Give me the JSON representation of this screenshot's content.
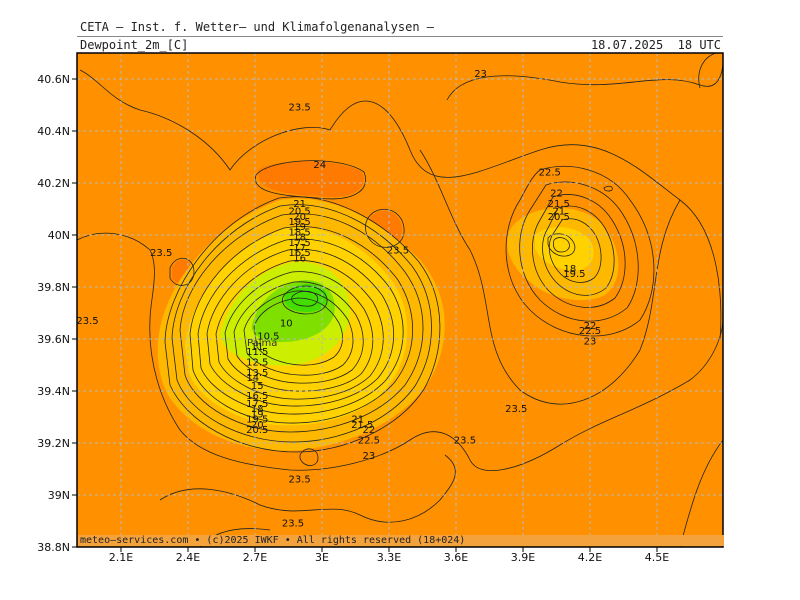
{
  "header": {
    "title": "CETA — Inst. f. Wetter— und Klimafolgenanalysen —",
    "field": "Dewpoint_2m_[C]",
    "valid_time": "18.07.2025  18 UTC"
  },
  "footer": {
    "credit": "meteo—services.com • (c)2025 IWKF • All rights reserved (18+024)"
  },
  "map": {
    "place_label": "Palma",
    "colors": {
      "background": "#ff9100",
      "warm": "#ff7a00",
      "pale": "#ffb800",
      "yellow": "#ffd200",
      "yellowgreen": "#ccee00",
      "green": "#7fe000",
      "bright_green": "#44dd00",
      "grid": "#b9b9b9",
      "contour": "#222222"
    },
    "lon_ticks": [
      "2.1E",
      "2.4E",
      "2.7E",
      "3E",
      "3.3E",
      "3.6E",
      "3.9E",
      "4.2E",
      "4.5E"
    ],
    "lat_ticks": [
      "40.6N",
      "40.4N",
      "40.2N",
      "40N",
      "39.8N",
      "39.6N",
      "39.4N",
      "39.2N",
      "39N",
      "38.8N"
    ],
    "lon_values": [
      2.1,
      2.4,
      2.7,
      3.0,
      3.3,
      3.6,
      3.9,
      4.2,
      4.5
    ],
    "lat_values": [
      40.6,
      40.4,
      40.2,
      40.0,
      39.8,
      39.6,
      39.4,
      39.2,
      39.0,
      38.8
    ],
    "contour_labels": [
      {
        "text": "23",
        "lon": 3.71,
        "lat": 40.62
      },
      {
        "text": "23.5",
        "lon": 2.9,
        "lat": 40.49
      },
      {
        "text": "24",
        "lon": 2.99,
        "lat": 40.27
      },
      {
        "text": "22.5",
        "lon": 4.02,
        "lat": 40.24
      },
      {
        "text": "22",
        "lon": 4.05,
        "lat": 40.16
      },
      {
        "text": "21.5",
        "lon": 4.06,
        "lat": 40.12
      },
      {
        "text": "21",
        "lon": 4.06,
        "lat": 40.09
      },
      {
        "text": "20.5",
        "lon": 4.06,
        "lat": 40.07
      },
      {
        "text": "21",
        "lon": 2.9,
        "lat": 40.12
      },
      {
        "text": "20.5",
        "lon": 2.9,
        "lat": 40.09
      },
      {
        "text": "20",
        "lon": 2.9,
        "lat": 40.07
      },
      {
        "text": "19.5",
        "lon": 2.9,
        "lat": 40.05
      },
      {
        "text": "19",
        "lon": 2.9,
        "lat": 40.03
      },
      {
        "text": "18.5",
        "lon": 2.9,
        "lat": 40.01
      },
      {
        "text": "18",
        "lon": 2.9,
        "lat": 39.99
      },
      {
        "text": "17.5",
        "lon": 2.9,
        "lat": 39.97
      },
      {
        "text": "17",
        "lon": 2.9,
        "lat": 39.95
      },
      {
        "text": "16.5",
        "lon": 2.9,
        "lat": 39.93
      },
      {
        "text": "16",
        "lon": 2.9,
        "lat": 39.91
      },
      {
        "text": "23.5",
        "lon": 2.28,
        "lat": 39.93
      },
      {
        "text": "23.5",
        "lon": 3.34,
        "lat": 39.94
      },
      {
        "text": "18",
        "lon": 4.11,
        "lat": 39.87
      },
      {
        "text": "19.5",
        "lon": 4.13,
        "lat": 39.85
      },
      {
        "text": "23.5",
        "lon": 1.95,
        "lat": 39.67
      },
      {
        "text": "10",
        "lon": 2.84,
        "lat": 39.66
      },
      {
        "text": "10.5",
        "lon": 2.76,
        "lat": 39.61
      },
      {
        "text": "11",
        "lon": 2.71,
        "lat": 39.57
      },
      {
        "text": "11.5",
        "lon": 2.71,
        "lat": 39.55
      },
      {
        "text": "12.5",
        "lon": 2.71,
        "lat": 39.51
      },
      {
        "text": "13.5",
        "lon": 2.71,
        "lat": 39.47
      },
      {
        "text": "14",
        "lon": 2.69,
        "lat": 39.45
      },
      {
        "text": "15",
        "lon": 2.71,
        "lat": 39.42
      },
      {
        "text": "16.5",
        "lon": 2.71,
        "lat": 39.38
      },
      {
        "text": "17.5",
        "lon": 2.71,
        "lat": 39.35
      },
      {
        "text": "18",
        "lon": 2.71,
        "lat": 39.33
      },
      {
        "text": "19",
        "lon": 2.71,
        "lat": 39.31
      },
      {
        "text": "19.5",
        "lon": 2.71,
        "lat": 39.29
      },
      {
        "text": "20",
        "lon": 2.71,
        "lat": 39.27
      },
      {
        "text": "20.5",
        "lon": 2.71,
        "lat": 39.25
      },
      {
        "text": "21",
        "lon": 3.16,
        "lat": 39.29
      },
      {
        "text": "21.5",
        "lon": 3.18,
        "lat": 39.27
      },
      {
        "text": "22",
        "lon": 3.21,
        "lat": 39.25
      },
      {
        "text": "22.5",
        "lon": 3.21,
        "lat": 39.21
      },
      {
        "text": "23",
        "lon": 3.21,
        "lat": 39.15
      },
      {
        "text": "22",
        "lon": 4.2,
        "lat": 39.65
      },
      {
        "text": "22.5",
        "lon": 4.2,
        "lat": 39.63
      },
      {
        "text": "23",
        "lon": 4.2,
        "lat": 39.59
      },
      {
        "text": "23.5",
        "lon": 3.87,
        "lat": 39.33
      },
      {
        "text": "23.5",
        "lon": 3.64,
        "lat": 39.21
      },
      {
        "text": "23.5",
        "lon": 2.9,
        "lat": 39.06
      },
      {
        "text": "23.5",
        "lon": 2.87,
        "lat": 38.89
      }
    ]
  }
}
